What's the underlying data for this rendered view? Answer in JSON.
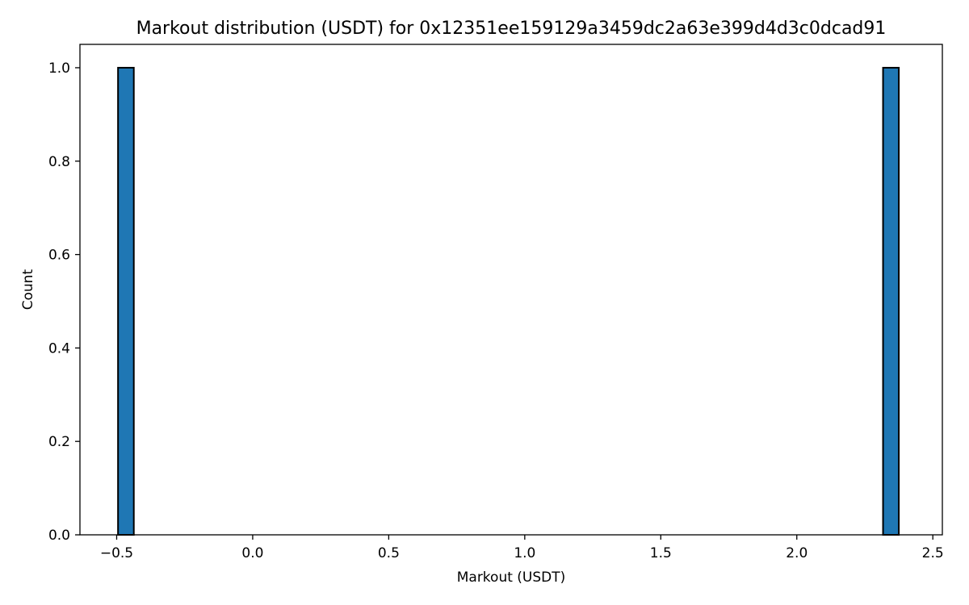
{
  "chart_data": {
    "type": "bar",
    "title": "Markout distribution (USDT) for 0x12351ee159129a3459dc2a63e399d4d3c0dcad91",
    "xlabel": "Markout (USDT)",
    "ylabel": "Count",
    "xlim": [
      -0.635,
      2.535
    ],
    "ylim": [
      0,
      1.05
    ],
    "x_ticks": [
      -0.5,
      0.0,
      0.5,
      1.0,
      1.5,
      2.0,
      2.5
    ],
    "x_tick_labels": [
      "−0.5",
      "0.0",
      "0.5",
      "1.0",
      "1.5",
      "2.0",
      "2.5"
    ],
    "y_ticks": [
      0.0,
      0.2,
      0.4,
      0.6,
      0.8,
      1.0
    ],
    "y_tick_labels": [
      "0.0",
      "0.2",
      "0.4",
      "0.6",
      "0.8",
      "1.0"
    ],
    "grid": false,
    "bar_color": "#1f77b4",
    "edge_color": "#000000",
    "bins": [
      {
        "x_start": -0.495,
        "x_end": -0.437,
        "count": 1
      },
      {
        "x_start": 2.317,
        "x_end": 2.375,
        "count": 1
      }
    ]
  }
}
